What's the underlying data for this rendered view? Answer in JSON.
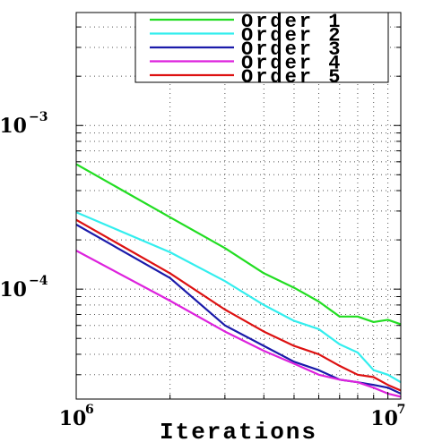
{
  "chart_data": {
    "type": "line",
    "title": "",
    "xlabel": "Iterations",
    "ylabel": "",
    "xscale": "log",
    "yscale": "log",
    "xlim": [
      1000000,
      11000000
    ],
    "ylim": [
      2.13e-05,
      0.0049
    ],
    "grid": true,
    "legend_position": "top-right",
    "x_ticks": [
      {
        "value": 1000000,
        "label": "10",
        "exp": "6"
      },
      {
        "value": 10000000,
        "label": "10",
        "exp": "7"
      }
    ],
    "y_ticks": [
      {
        "value": 0.0001,
        "label": "10",
        "exp": "−4"
      },
      {
        "value": 0.001,
        "label": "10",
        "exp": "−3"
      }
    ],
    "series": [
      {
        "name": "Order 1",
        "color": "#22dd22",
        "x": [
          1000000,
          2000000,
          3000000,
          4000000,
          5000000,
          6000000,
          7000000,
          8000000,
          9000000,
          10000000,
          11000000
        ],
        "y": [
          0.00058,
          0.000275,
          0.000178,
          0.000125,
          0.000102,
          8.4e-05,
          6.8e-05,
          6.8e-05,
          6.3e-05,
          6.5e-05,
          6.1e-05
        ]
      },
      {
        "name": "Order 2",
        "color": "#33eeee",
        "x": [
          1000000,
          2000000,
          3000000,
          4000000,
          5000000,
          6000000,
          7000000,
          8000000,
          9000000,
          10000000,
          11000000
        ],
        "y": [
          0.000295,
          0.000168,
          0.000112,
          8e-05,
          6.4e-05,
          5.7e-05,
          4.6e-05,
          4.1e-05,
          3.2e-05,
          3e-05,
          2.7e-05
        ]
      },
      {
        "name": "Order 3",
        "color": "#1a1aaa",
        "x": [
          1000000,
          2000000,
          3000000,
          4000000,
          5000000,
          6000000,
          7000000,
          8000000,
          9000000,
          10000000,
          11000000
        ],
        "y": [
          0.000248,
          0.000117,
          6e-05,
          4.5e-05,
          3.6e-05,
          3.2e-05,
          2.8e-05,
          2.7e-05,
          2.6e-05,
          2.5e-05,
          2.3e-05
        ]
      },
      {
        "name": "Order 4",
        "color": "#dd22dd",
        "x": [
          1000000,
          2000000,
          3000000,
          4000000,
          5000000,
          6000000,
          7000000,
          8000000,
          9000000,
          10000000,
          11000000
        ],
        "y": [
          0.000172,
          8.5e-05,
          5.5e-05,
          4.2e-05,
          3.5e-05,
          3e-05,
          2.8e-05,
          2.7e-05,
          2.5e-05,
          2.3e-05,
          2.2e-05
        ]
      },
      {
        "name": "Order 5",
        "color": "#dd1111",
        "x": [
          1000000,
          2000000,
          3000000,
          4000000,
          5000000,
          6000000,
          7000000,
          8000000,
          9000000,
          10000000,
          11000000
        ],
        "y": [
          0.000265,
          0.000125,
          7.5e-05,
          5.5e-05,
          4.5e-05,
          4e-05,
          3.4e-05,
          3e-05,
          2.9e-05,
          2.6e-05,
          2.4e-05
        ]
      }
    ]
  }
}
